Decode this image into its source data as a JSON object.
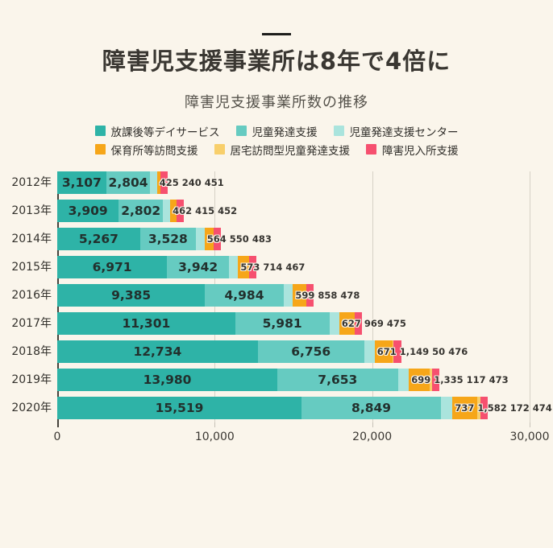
{
  "header": {
    "title": "障害児支援事業所は8年で4倍に"
  },
  "colors": {
    "background": "#faf5eb",
    "title_text": "#3a3732",
    "subtitle_text": "#55524b",
    "zero_axis": "#45423c",
    "gridline": "#d6d1c6"
  },
  "chart_data": {
    "type": "bar",
    "orientation": "horizontal",
    "stacked": true,
    "title": "障害児支援事業所数の推移",
    "legend_position": "top",
    "grid": "vertical",
    "categories": [
      "2012年",
      "2013年",
      "2014年",
      "2015年",
      "2016年",
      "2017年",
      "2018年",
      "2019年",
      "2020年"
    ],
    "series": [
      {
        "name": "放課後等デイサービス",
        "color": "#2eb3a7",
        "label_placement": "inside",
        "values": [
          3107,
          3909,
          5267,
          6971,
          9385,
          11301,
          12734,
          13980,
          15519
        ]
      },
      {
        "name": "児童発達支援",
        "color": "#66cbc1",
        "label_placement": "inside",
        "values": [
          2804,
          2802,
          3528,
          3942,
          4984,
          5981,
          6756,
          7653,
          8849
        ]
      },
      {
        "name": "児童発達支援センター",
        "color": "#aae4dd",
        "label_placement": "tail",
        "values": [
          425,
          462,
          564,
          573,
          599,
          627,
          671,
          699,
          737
        ]
      },
      {
        "name": "保育所等訪問支援",
        "color": "#f6a619",
        "label_placement": "tail",
        "values": [
          240,
          415,
          550,
          714,
          858,
          969,
          1149,
          1335,
          1582
        ]
      },
      {
        "name": "居宅訪問型児童発達支援",
        "color": "#f8cf6b",
        "label_placement": "tail",
        "values": [
          0,
          0,
          0,
          0,
          0,
          0,
          50,
          117,
          172
        ]
      },
      {
        "name": "障害児入所支援",
        "color": "#f6506f",
        "label_placement": "tail",
        "values": [
          451,
          452,
          483,
          467,
          478,
          475,
          476,
          473,
          474
        ]
      }
    ],
    "x_axis": {
      "max": 30000,
      "ticks": [
        {
          "label": "0",
          "value": 0
        },
        {
          "label": "10,000",
          "value": 10000
        },
        {
          "label": "20,000",
          "value": 20000
        },
        {
          "label": "30,000",
          "value": 30000
        }
      ]
    }
  }
}
